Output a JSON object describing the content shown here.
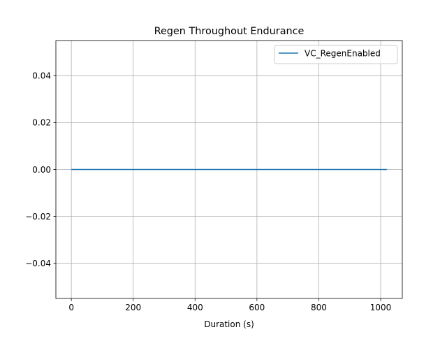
{
  "chart_data": {
    "type": "line",
    "title": "Regen Throughout Endurance",
    "xlabel": "Duration (s)",
    "ylabel": "",
    "xlim": [
      -50,
      1070
    ],
    "ylim": [
      -0.055,
      0.055
    ],
    "xticks": [
      0,
      200,
      400,
      600,
      800,
      1000
    ],
    "xtick_labels": [
      "0",
      "200",
      "400",
      "600",
      "800",
      "1000"
    ],
    "yticks": [
      -0.04,
      -0.02,
      0.0,
      0.02,
      0.04
    ],
    "ytick_labels": [
      "−0.04",
      "−0.02",
      "0.00",
      "0.02",
      "0.04"
    ],
    "grid": true,
    "legend_position": "top-right",
    "series": [
      {
        "name": "VC_RegenEnabled",
        "color": "#1f77b4",
        "x": [
          0,
          1020
        ],
        "y": [
          0,
          0
        ]
      }
    ]
  }
}
